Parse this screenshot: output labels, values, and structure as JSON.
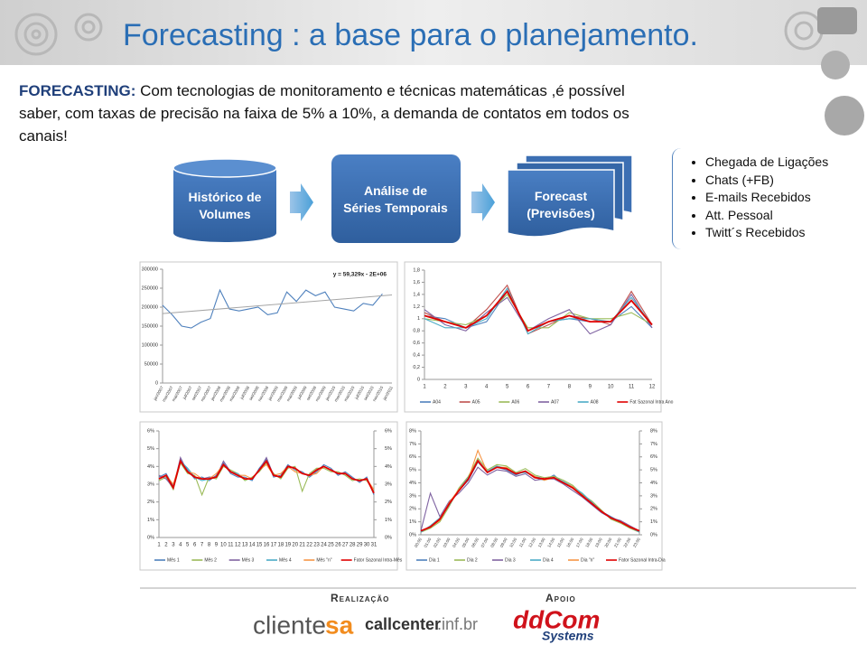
{
  "header": {
    "title": "Forecasting : a base para o planejamento."
  },
  "intro": {
    "lead": "FORECASTING:",
    "text": "Com tecnologias de monitoramento e técnicas matemáticas ,é possível saber, com taxas de precisão na faixa de 5% a 10%, a demanda de contatos em todos os canais!"
  },
  "flow": {
    "steps": [
      "Histórico de Volumes",
      "Análise de Séries Temporais",
      "Forecast (Previsões)"
    ]
  },
  "channels": [
    "Chegada de Ligações",
    "Chats (+FB)",
    "E-mails Recebidos",
    "Att. Pessoal",
    "Twitt´s Recebidos"
  ],
  "footer": {
    "sponsor_label": "Realização",
    "support_label": "Apoio",
    "logos": [
      "cliente",
      "sa",
      "callcenter",
      ".inf.br",
      "ddCom",
      "Systems"
    ]
  },
  "chart_data": [
    {
      "type": "line",
      "categories": [
        "jan/2007",
        "mar/2007",
        "mai/2007",
        "jul/2007",
        "set/2007",
        "nov/2007",
        "jan/2008",
        "mar/2008",
        "mai/2008",
        "jul/2008",
        "set/2008",
        "nov/2008",
        "jan/2009",
        "mar/2009",
        "mai/2009",
        "jul/2009",
        "set/2009",
        "nov/2009",
        "jan/2010",
        "mar/2010",
        "mai/2010",
        "jul/2010",
        "set/2010",
        "nov/2010",
        "jan/2011"
      ],
      "values": [
        205000,
        180000,
        150000,
        145000,
        160000,
        170000,
        245000,
        195000,
        190000,
        195000,
        200000,
        180000,
        185000,
        240000,
        215000,
        245000,
        230000,
        240000,
        200000,
        195000,
        190000,
        210000,
        205000,
        235000,
        null
      ],
      "color": "#4f81bd",
      "trendline": {
        "label": "y = 59,329x - 2E+06",
        "values": [
          183000,
          232000
        ],
        "color": "#a5a5a5"
      },
      "ylim": [
        0,
        300000
      ],
      "yticks": [
        0,
        50000,
        100000,
        150000,
        200000,
        250000,
        300000
      ]
    },
    {
      "type": "line",
      "categories": [
        "1",
        "2",
        "3",
        "4",
        "5",
        "6",
        "7",
        "8",
        "9",
        "10",
        "11",
        "12"
      ],
      "series": [
        {
          "name": "A04",
          "color": "#4f81bd",
          "values": [
            1.05,
            1.0,
            0.85,
            0.95,
            1.45,
            0.8,
            0.95,
            1.0,
            0.95,
            0.95,
            1.2,
            0.85
          ]
        },
        {
          "name": "A05",
          "color": "#c0504d",
          "values": [
            1.1,
            0.95,
            0.85,
            1.15,
            1.55,
            0.75,
            0.9,
            1.05,
            1.0,
            0.9,
            1.45,
            0.9
          ]
        },
        {
          "name": "A06",
          "color": "#9bbb59",
          "values": [
            1.0,
            0.95,
            0.9,
            1.05,
            1.4,
            0.85,
            0.85,
            1.1,
            1.0,
            1.0,
            1.1,
            0.9
          ]
        },
        {
          "name": "A07",
          "color": "#8064a2",
          "values": [
            1.15,
            0.9,
            0.8,
            1.1,
            1.35,
            0.8,
            1.0,
            1.15,
            0.75,
            0.9,
            1.4,
            0.85
          ]
        },
        {
          "name": "A08",
          "color": "#4bacc6",
          "values": [
            1.0,
            0.85,
            0.85,
            1.0,
            1.5,
            0.75,
            0.95,
            1.0,
            1.0,
            0.95,
            1.35,
            0.9
          ]
        },
        {
          "name": "Fat Sazonal Intra Ano",
          "color": "#e00000",
          "values": [
            1.05,
            0.95,
            0.85,
            1.05,
            1.45,
            0.8,
            0.95,
            1.05,
            0.95,
            0.95,
            1.3,
            0.9
          ]
        }
      ],
      "ylim": [
        0,
        1.8
      ],
      "yticks": [
        0,
        {
          "value": 0.2,
          "label": "0,2"
        },
        {
          "value": 0.4,
          "label": "0,4"
        },
        {
          "value": 0.6,
          "label": "0,6"
        },
        {
          "value": 0.8,
          "label": "0,8"
        },
        1,
        {
          "value": 1.2,
          "label": "1,2"
        },
        {
          "value": 1.4,
          "label": "1,4"
        },
        {
          "value": 1.6,
          "label": "1,6"
        },
        {
          "value": 1.8,
          "label": "1,8"
        }
      ]
    },
    {
      "type": "line",
      "categories": [
        "1",
        "2",
        "3",
        "4",
        "5",
        "6",
        "7",
        "8",
        "9",
        "10",
        "11",
        "12",
        "13",
        "14",
        "15",
        "16",
        "17",
        "18",
        "19",
        "20",
        "21",
        "22",
        "23",
        "24",
        "25",
        "26",
        "27",
        "28",
        "29",
        "30",
        "31"
      ],
      "series": [
        {
          "name": "Mês 1",
          "color": "#4f81bd",
          "values": [
            3.4,
            3.6,
            2.9,
            4.4,
            3.8,
            3.3,
            3.4,
            3.2,
            3.5,
            4.2,
            3.6,
            3.4,
            3.4,
            3.2,
            3.9,
            4.4,
            3.4,
            3.5,
            4.1,
            3.8,
            3.7,
            3.4,
            3.7,
            4.1,
            3.9,
            3.5,
            3.7,
            3.4,
            3.1,
            3.4,
            2.4
          ]
        },
        {
          "name": "Mês 2",
          "color": "#9bbb59",
          "values": [
            3.2,
            3.4,
            2.7,
            4.2,
            3.6,
            3.5,
            2.4,
            3.4,
            3.3,
            4.0,
            3.8,
            3.6,
            3.2,
            3.4,
            3.7,
            4.2,
            3.6,
            3.3,
            3.9,
            4.0,
            2.6,
            3.6,
            3.9,
            3.9,
            3.7,
            3.7,
            3.5,
            3.2,
            3.3,
            3.2,
            2.6
          ]
        },
        {
          "name": "Mês 3",
          "color": "#8064a2",
          "values": [
            3.5,
            3.3,
            2.8,
            4.5,
            3.7,
            3.4,
            3.3,
            3.4,
            3.4,
            4.3,
            3.7,
            3.5,
            3.3,
            3.3,
            3.8,
            4.5,
            3.5,
            3.4,
            4.0,
            3.9,
            3.6,
            3.5,
            3.8,
            4.0,
            3.8,
            3.6,
            3.6,
            3.3,
            3.2,
            3.3,
            2.5
          ]
        },
        {
          "name": "Mês 4",
          "color": "#4bacc6",
          "values": [
            3.3,
            3.5,
            2.8,
            4.3,
            3.9,
            3.4,
            3.2,
            3.3,
            3.4,
            4.1,
            3.7,
            3.6,
            3.3,
            3.3,
            3.8,
            4.3,
            3.5,
            3.4,
            4.0,
            3.9,
            3.6,
            3.5,
            3.8,
            4.0,
            3.8,
            null,
            null,
            null,
            null,
            null,
            null
          ]
        },
        {
          "name": "Mês \"n\"",
          "color": "#f79646",
          "values": [
            3.3,
            3.5,
            3.0,
            4.3,
            3.7,
            3.6,
            3.3,
            3.3,
            3.6,
            4.1,
            3.7,
            3.5,
            3.5,
            3.3,
            3.8,
            4.1,
            3.5,
            3.6,
            4.0,
            3.7,
            3.6,
            3.5,
            3.6,
            4.0,
            3.8,
            3.6,
            3.6,
            3.3,
            3.2,
            3.3,
            2.7
          ]
        },
        {
          "name": "Fator Sazonal Intra-Mês",
          "color": "#e00000",
          "values": [
            3.3,
            3.5,
            2.8,
            4.3,
            3.7,
            3.4,
            3.3,
            3.3,
            3.4,
            4.1,
            3.7,
            3.5,
            3.3,
            3.3,
            3.8,
            4.3,
            3.5,
            3.4,
            4.0,
            3.9,
            3.6,
            3.5,
            3.8,
            4.0,
            3.8,
            3.6,
            3.6,
            3.3,
            3.2,
            3.3,
            2.5
          ]
        }
      ],
      "ylim": [
        0,
        6
      ],
      "yticks": [
        {
          "value": 0,
          "label": "0%"
        },
        {
          "value": 1,
          "label": "1%"
        },
        {
          "value": 2,
          "label": "2%"
        },
        {
          "value": 3,
          "label": "3%"
        },
        {
          "value": 4,
          "label": "4%"
        },
        {
          "value": 5,
          "label": "5%"
        },
        {
          "value": 6,
          "label": "6%"
        }
      ],
      "y2lim": [
        0,
        6
      ],
      "y2ticks": [
        {
          "value": 0,
          "label": "0%"
        },
        {
          "value": 1,
          "label": "1%"
        },
        {
          "value": 2,
          "label": "2%"
        },
        {
          "value": 3,
          "label": "3%"
        },
        {
          "value": 4,
          "label": "4%"
        },
        {
          "value": 5,
          "label": "5%"
        },
        {
          "value": 6,
          "label": "6%"
        }
      ]
    },
    {
      "type": "line",
      "categories": [
        "00:00",
        "01:00",
        "02:00",
        "03:00",
        "04:00",
        "05:00",
        "06:00",
        "07:00",
        "08:00",
        "09:00",
        "10:00",
        "11:00",
        "12:00",
        "13:00",
        "14:00",
        "15:00",
        "16:00",
        "17:00",
        "18:00",
        "19:00",
        "20:00",
        "21:00",
        "22:00",
        "23:00"
      ],
      "series": [
        {
          "name": "Dia 1",
          "color": "#4f81bd",
          "values": [
            0.3,
            0.6,
            1.2,
            2.4,
            3.4,
            4.2,
            5.6,
            4.8,
            5.2,
            5.0,
            4.6,
            4.9,
            4.4,
            4.2,
            4.6,
            4.0,
            3.6,
            3.0,
            2.4,
            1.8,
            1.4,
            1.0,
            0.6,
            0.3
          ]
        },
        {
          "name": "Dia 2",
          "color": "#9bbb59",
          "values": [
            0.2,
            0.5,
            1.0,
            2.2,
            3.6,
            4.5,
            5.9,
            5.0,
            5.4,
            5.3,
            4.8,
            5.1,
            4.6,
            4.4,
            4.5,
            4.2,
            3.8,
            3.1,
            2.6,
            1.9,
            1.2,
            0.9,
            0.5,
            0.2
          ]
        },
        {
          "name": "Dia 3",
          "color": "#8064a2",
          "values": [
            0.3,
            3.2,
            1.4,
            2.6,
            3.2,
            4.0,
            5.2,
            4.6,
            5.0,
            4.9,
            4.5,
            4.7,
            4.2,
            4.3,
            4.3,
            3.9,
            3.4,
            2.9,
            2.3,
            1.7,
            1.3,
            1.1,
            0.7,
            0.3
          ]
        },
        {
          "name": "Dia 4",
          "color": "#4bacc6",
          "values": [
            0.2,
            0.7,
            1.3,
            2.3,
            3.5,
            4.4,
            5.7,
            4.9,
            5.3,
            5.1,
            4.7,
            4.8,
            4.5,
            4.3,
            4.4,
            4.1,
            3.7,
            3.2,
            2.5,
            1.8,
            1.3,
            1.0,
            0.6,
            0.2
          ]
        },
        {
          "name": "Dia \"n\"",
          "color": "#f79646",
          "values": [
            0.3,
            0.6,
            1.1,
            2.5,
            3.5,
            4.3,
            6.5,
            4.8,
            5.2,
            5.2,
            4.7,
            4.9,
            4.5,
            4.2,
            4.4,
            4.0,
            3.7,
            3.0,
            2.4,
            1.8,
            1.3,
            1.0,
            0.6,
            0.3
          ]
        },
        {
          "name": "Fator Sazonal Intra-Dia",
          "color": "#e00000",
          "values": [
            0.3,
            0.6,
            1.2,
            2.4,
            3.4,
            4.3,
            5.7,
            4.8,
            5.2,
            5.1,
            4.7,
            4.9,
            4.4,
            4.3,
            4.4,
            4.0,
            3.6,
            3.0,
            2.4,
            1.8,
            1.3,
            1.0,
            0.6,
            0.3
          ]
        }
      ],
      "ylim": [
        0,
        8
      ],
      "yticks": [
        {
          "value": 0,
          "label": "0%"
        },
        {
          "value": 1,
          "label": "1%"
        },
        {
          "value": 2,
          "label": "2%"
        },
        {
          "value": 3,
          "label": "3%"
        },
        {
          "value": 4,
          "label": "4%"
        },
        {
          "value": 5,
          "label": "5%"
        },
        {
          "value": 6,
          "label": "6%"
        },
        {
          "value": 7,
          "label": "7%"
        },
        {
          "value": 8,
          "label": "8%"
        }
      ],
      "y2lim": [
        0,
        8
      ],
      "y2ticks": [
        {
          "value": 0,
          "label": "0%"
        },
        {
          "value": 1,
          "label": "1%"
        },
        {
          "value": 2,
          "label": "2%"
        },
        {
          "value": 3,
          "label": "3%"
        },
        {
          "value": 4,
          "label": "4%"
        },
        {
          "value": 5,
          "label": "5%"
        },
        {
          "value": 6,
          "label": "6%"
        },
        {
          "value": 7,
          "label": "7%"
        },
        {
          "value": 8,
          "label": "8%"
        }
      ]
    }
  ]
}
